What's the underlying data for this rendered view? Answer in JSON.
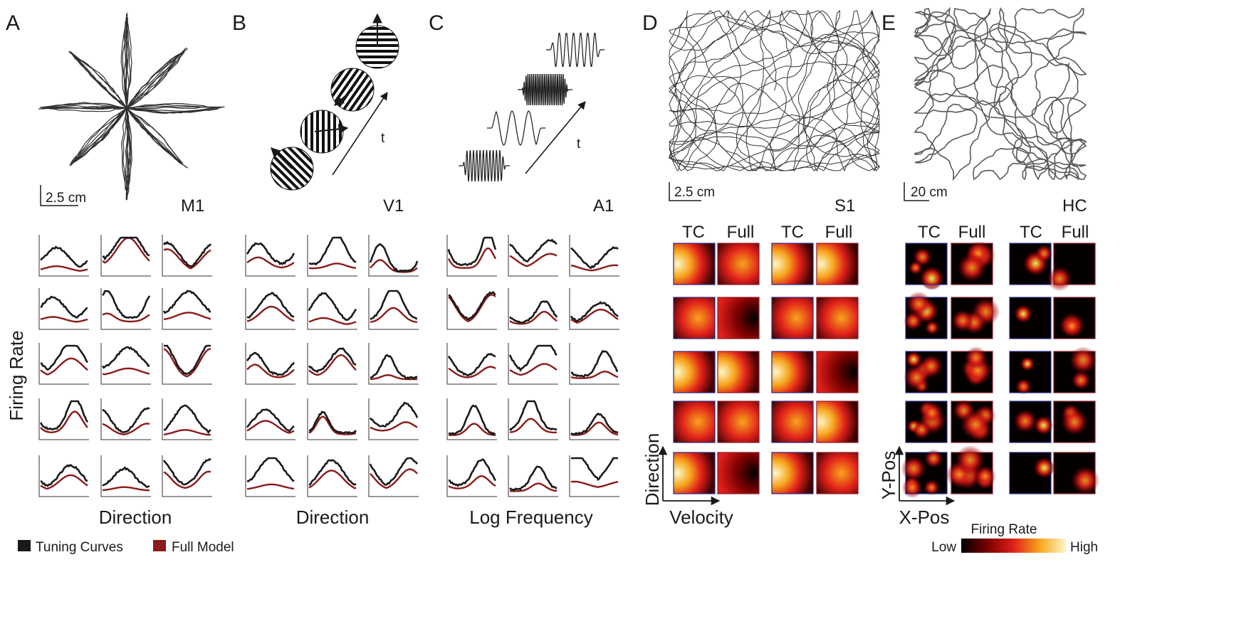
{
  "panels": [
    {
      "letter": "A",
      "region": "M1",
      "scale_label": "2.5 cm",
      "xlabel": "Direction"
    },
    {
      "letter": "B",
      "region": "V1",
      "xlabel": "Direction",
      "time_label": "t"
    },
    {
      "letter": "C",
      "region": "A1",
      "xlabel": "Log Frequency",
      "time_label": "t"
    },
    {
      "letter": "D",
      "region": "S1",
      "scale_label": "2.5 cm",
      "map_cols": [
        "TC",
        "Full",
        "TC",
        "Full"
      ],
      "xlabel": "Velocity",
      "ylabel": "Direction"
    },
    {
      "letter": "E",
      "region": "HC",
      "scale_label": "20 cm",
      "map_cols": [
        "TC",
        "Full",
        "TC",
        "Full"
      ],
      "xlabel": "X-Pos",
      "ylabel": "Y-Pos"
    }
  ],
  "shared": {
    "ylabel": "Firing Rate"
  },
  "legend": {
    "items": [
      {
        "label": "Tuning Curves",
        "color": "#1a1a1a"
      },
      {
        "label": "Full Model",
        "color": "#8b1a1a"
      }
    ]
  },
  "colorbar": {
    "title": "Firing Rate",
    "low": "Low",
    "high": "High",
    "colors": [
      "#000000",
      "#7a0000",
      "#e0201a",
      "#f7a51c",
      "#fdf7c8"
    ]
  },
  "colors": {
    "tuning": "#1a1a1a",
    "model": "#8b1a1a"
  }
}
